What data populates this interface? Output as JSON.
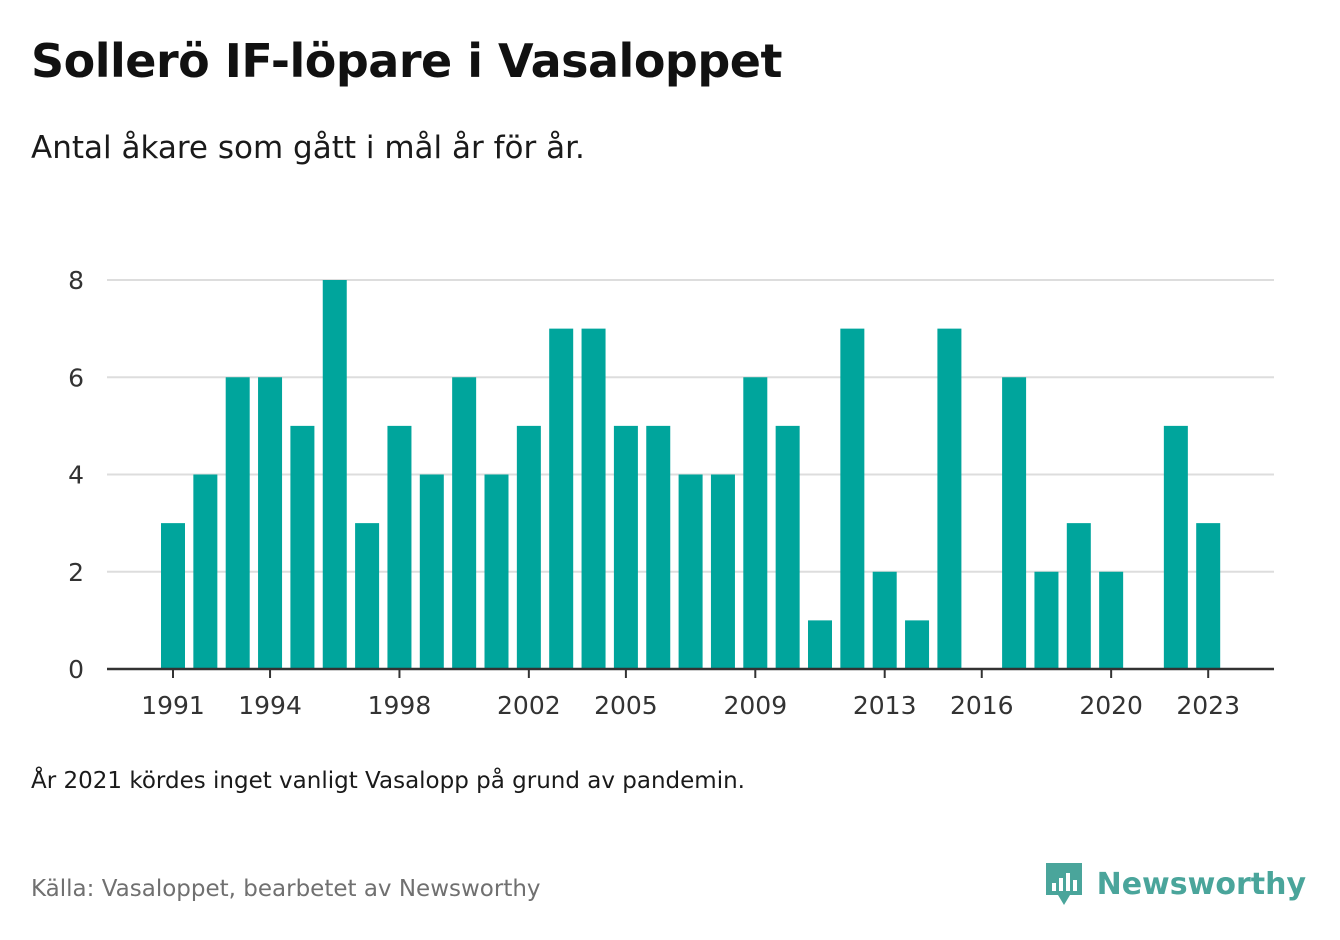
{
  "header": {
    "title": "Sollerö IF-löpare i Vasaloppet",
    "subtitle": "Antal åkare som gått i mål år för år."
  },
  "footer": {
    "note": "År 2021 kördes inget vanligt Vasalopp på grund av pandemin.",
    "source": "Källa: Vasaloppet, bearbetet av Newsworthy",
    "brand": "Newsworthy"
  },
  "colors": {
    "bar": "#00a59c",
    "grid": "#dddddd",
    "axis": "#333333",
    "brand": "#4aa59b"
  },
  "chart_data": {
    "type": "bar",
    "title": "Sollerö IF-löpare i Vasaloppet",
    "subtitle": "Antal åkare som gått i mål år för år.",
    "xlabel": "",
    "ylabel": "",
    "ylim": [
      0,
      8
    ],
    "yticks": [
      0,
      2,
      4,
      6,
      8
    ],
    "xticks": [
      1991,
      1994,
      1998,
      2002,
      2005,
      2009,
      2013,
      2016,
      2020,
      2023
    ],
    "grid": true,
    "categories": [
      1991,
      1992,
      1993,
      1994,
      1995,
      1996,
      1997,
      1998,
      1999,
      2000,
      2001,
      2002,
      2003,
      2004,
      2005,
      2006,
      2007,
      2008,
      2009,
      2010,
      2011,
      2012,
      2013,
      2014,
      2015,
      2016,
      2017,
      2018,
      2019,
      2020,
      2021,
      2022,
      2023
    ],
    "values": [
      3,
      4,
      6,
      6,
      5,
      8,
      3,
      5,
      4,
      6,
      4,
      5,
      7,
      7,
      5,
      5,
      4,
      4,
      6,
      5,
      1,
      7,
      2,
      1,
      7,
      0,
      6,
      2,
      3,
      2,
      0,
      5,
      3
    ]
  }
}
